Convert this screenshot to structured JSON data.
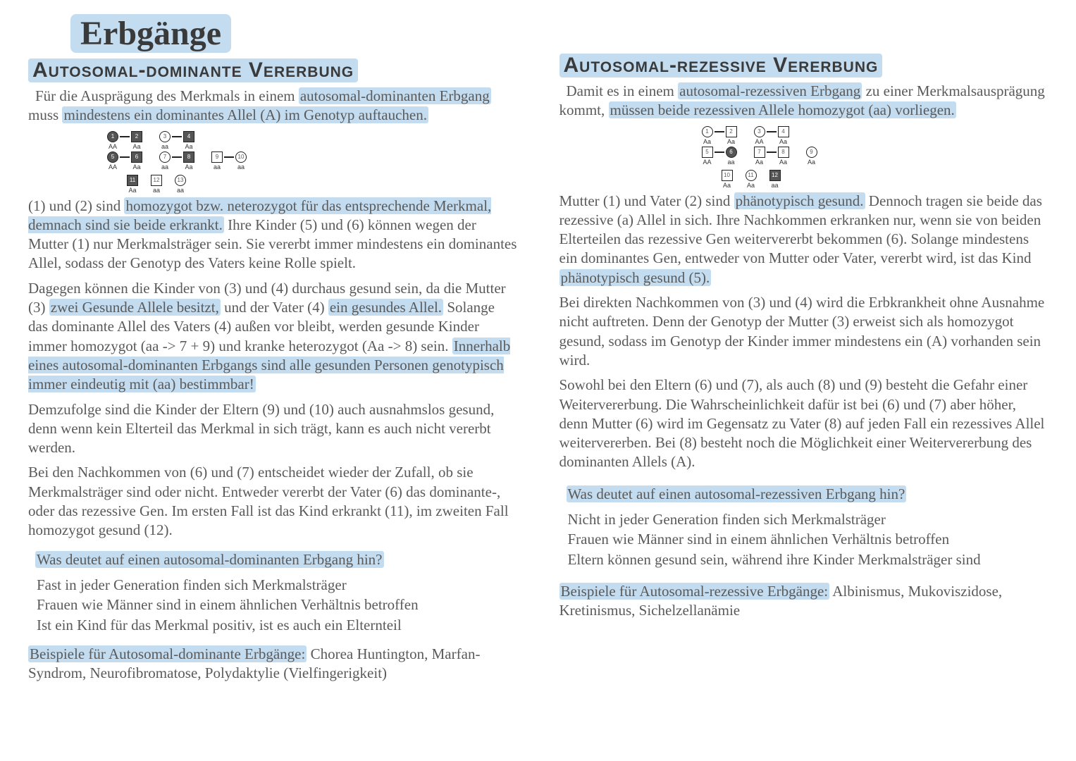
{
  "colors": {
    "highlight": "#c3dcf0",
    "text": "#5a5a5a",
    "heading": "#3a3a3a",
    "bg": "#ffffff"
  },
  "title": "Erbgänge",
  "left": {
    "heading": "Autosomal-dominante Vererbung",
    "intro_a": "Für die Ausprägung des Merkmals in einem ",
    "intro_hl1": "autosomal-dominanten Erbgang",
    "intro_b": " muss ",
    "intro_hl2": "mindestens ein dominantes Allel (A) im Genotyp auftauchen.",
    "pedigree": {
      "gen1": [
        {
          "n": "1",
          "shape": "circle",
          "filled": true,
          "gt": "AA"
        },
        {
          "n": "2",
          "shape": "square",
          "filled": true,
          "gt": "Aa"
        },
        {
          "n": "3",
          "shape": "circle",
          "filled": false,
          "gt": "aa"
        },
        {
          "n": "4",
          "shape": "square",
          "filled": true,
          "gt": "Aa"
        }
      ],
      "gen2": [
        {
          "n": "5",
          "shape": "circle",
          "filled": true,
          "gt": "AA"
        },
        {
          "n": "6",
          "shape": "square",
          "filled": true,
          "gt": "Aa"
        },
        {
          "n": "7",
          "shape": "circle",
          "filled": false,
          "gt": "aa"
        },
        {
          "n": "8",
          "shape": "square",
          "filled": true,
          "gt": "Aa"
        },
        {
          "n": "9",
          "shape": "square",
          "filled": false,
          "gt": "aa"
        },
        {
          "n": "10",
          "shape": "circle",
          "filled": false,
          "gt": "aa"
        }
      ],
      "gen3": [
        {
          "n": "11",
          "shape": "square",
          "filled": true,
          "gt": "Aa"
        },
        {
          "n": "12",
          "shape": "square",
          "filled": false,
          "gt": "aa"
        },
        {
          "n": "13",
          "shape": "circle",
          "filled": false,
          "gt": "aa"
        }
      ]
    },
    "p1_a": "(1) und (2) sind ",
    "p1_hl": "homozygot bzw. neterozygot für das entsprechende Merkmal, demnach sind sie beide erkrankt.",
    "p1_b": " Ihre Kinder (5) und (6) können wegen der Mutter (1) nur Merkmalsträger sein. Sie vererbt immer mindestens ein dominantes Allel, sodass der Genotyp des Vaters keine Rolle spielt.",
    "p2_a": "Dagegen können die Kinder von (3) und (4) durchaus gesund sein, da die Mutter (3) ",
    "p2_hl1": "zwei Gesunde Allele besitzt,",
    "p2_b": " und der Vater (4) ",
    "p2_hl2": "ein gesundes Allel.",
    "p2_c": " Solange das dominante Allel des Vaters (4) außen vor bleibt, werden gesunde Kinder immer homozygot (aa -> 7 + 9) und kranke heterozygot (Aa -> 8) sein. ",
    "p2_hl3": "Innerhalb eines autosomal-dominanten Erbgangs sind alle gesunden Personen genotypisch immer eindeutig mit (aa) bestimmbar!",
    "p3": "Demzufolge sind die Kinder der Eltern (9) und (10) auch ausnahmslos gesund, denn wenn kein Elterteil das Merkmal in sich trägt, kann es auch nicht vererbt werden.",
    "p4": "Bei den Nachkommen von (6) und (7) entscheidet wieder der Zufall, ob sie Merkmalsträger sind oder nicht. Entweder vererbt der Vater (6) das dominante-, oder das rezessive Gen. Im ersten Fall ist das Kind erkrankt (11), im zweiten Fall homozygot gesund (12).",
    "q_title": "Was deutet auf einen autosomal-dominanten Erbgang hin?",
    "q1": "Fast in jeder Generation finden sich Merkmalsträger",
    "q2": "Frauen wie Männer sind in einem ähnlichen Verhältnis betroffen",
    "q3": "Ist ein Kind für das Merkmal positiv, ist es auch ein Elternteil",
    "ex_label": "Beispiele für Autosomal-dominante Erbgänge:",
    "ex_text": " Chorea Huntington, Marfan-Syndrom, Neurofibromatose, Polydaktylie (Vielfingerigkeit)"
  },
  "right": {
    "heading": "Autosomal-rezessive Vererbung",
    "intro_a": "Damit es in einem ",
    "intro_hl1": "autosomal-rezessiven Erbgang",
    "intro_b": " zu einer Merkmalsausprägung kommt, ",
    "intro_hl2": "müssen beide rezessiven Allele homozygot (aa) vorliegen.",
    "pedigree": {
      "gen1": [
        {
          "n": "1",
          "shape": "circle",
          "filled": false,
          "gt": "Aa"
        },
        {
          "n": "2",
          "shape": "square",
          "filled": false,
          "gt": "Aa"
        },
        {
          "n": "3",
          "shape": "circle",
          "filled": false,
          "gt": "AA"
        },
        {
          "n": "4",
          "shape": "square",
          "filled": false,
          "gt": "Aa"
        }
      ],
      "gen2": [
        {
          "n": "5",
          "shape": "square",
          "filled": false,
          "gt": "AA"
        },
        {
          "n": "6",
          "shape": "circle",
          "filled": true,
          "gt": "aa"
        },
        {
          "n": "7",
          "shape": "square",
          "filled": false,
          "gt": "Aa"
        },
        {
          "n": "8",
          "shape": "square",
          "filled": false,
          "gt": "Aa"
        },
        {
          "n": "9",
          "shape": "circle",
          "filled": false,
          "gt": "Aa"
        }
      ],
      "gen3": [
        {
          "n": "10",
          "shape": "square",
          "filled": false,
          "gt": "Aa"
        },
        {
          "n": "11",
          "shape": "circle",
          "filled": false,
          "gt": "Aa"
        },
        {
          "n": "12",
          "shape": "square",
          "filled": true,
          "gt": "aa"
        }
      ]
    },
    "p1_a": "Mutter (1) und Vater (2) sind ",
    "p1_hl": "phänotypisch gesund.",
    "p1_b": " Dennoch tragen sie beide das rezessive (a) Allel in sich. Ihre Nachkommen erkranken nur, wenn sie von beiden Elterteilen das rezessive Gen weitervererbt bekommen (6). Solange mindestens ein dominantes Gen, entweder von Mutter oder Vater, vererbt wird, ist das Kind ",
    "p1_hl2": "phänotypisch gesund (5).",
    "p2": "Bei direkten Nachkommen von (3) und (4) wird die Erbkrankheit ohne Ausnahme nicht auftreten. Denn der Genotyp der Mutter (3) erweist sich als homozygot gesund, sodass im Genotyp der Kinder immer mindestens ein (A) vorhanden sein wird.",
    "p3": "Sowohl bei den Eltern (6) und (7), als auch (8) und (9) besteht die Gefahr einer Weitervererbung. Die Wahrscheinlichkeit dafür ist bei (6) und (7) aber höher, denn Mutter (6) wird im Gegensatz zu Vater (8) auf jeden Fall ein rezessives Allel weitervererben. Bei (8) besteht noch die Möglichkeit einer Weitervererbung des dominanten Allels (A).",
    "q_title": "Was deutet auf einen autosomal-rezessiven Erbgang hin?",
    "q1": "Nicht in jeder Generation finden sich Merkmalsträger",
    "q2": "Frauen wie Männer sind in einem ähnlichen Verhältnis betroffen",
    "q3": "Eltern können gesund sein, während ihre Kinder Merkmalsträger sind",
    "ex_label": "Beispiele für Autosomal-rezessive Erbgänge:",
    "ex_text": " Albinismus, Mukoviszidose, Kretinismus, Sichelzellanämie"
  }
}
